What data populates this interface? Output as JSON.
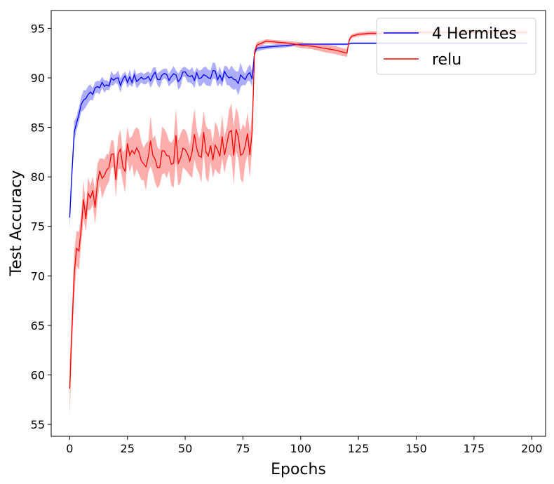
{
  "chart_data": {
    "type": "line",
    "xlabel": "Epochs",
    "ylabel": "Test Accuracy",
    "xlim": [
      -8,
      206
    ],
    "ylim": [
      53.8,
      96.8
    ],
    "xticks": [
      0,
      25,
      50,
      75,
      100,
      125,
      150,
      175,
      200
    ],
    "yticks": [
      55,
      60,
      65,
      70,
      75,
      80,
      85,
      90,
      95
    ],
    "legend_position": "top-right",
    "grid": false,
    "series": [
      {
        "name": "4 Hermites",
        "color": "#0000ff",
        "band_color": "#a0a0ff",
        "x": [
          0,
          2,
          4,
          6,
          8,
          10,
          12,
          15,
          18,
          20,
          22,
          25,
          28,
          30,
          32,
          35,
          38,
          40,
          42,
          45,
          48,
          50,
          52,
          55,
          58,
          60,
          62,
          65,
          68,
          70,
          72,
          75,
          77,
          79,
          80,
          81,
          85,
          90,
          95,
          100,
          105,
          110,
          115,
          120,
          122,
          125,
          130,
          135,
          140,
          150,
          160,
          170,
          180,
          190,
          198
        ],
        "values": [
          75.9,
          84.5,
          86.5,
          87.5,
          88.3,
          88.8,
          89.0,
          89.3,
          89.5,
          89.6,
          89.7,
          89.8,
          89.9,
          90.0,
          90.0,
          90.1,
          90.1,
          90.0,
          90.2,
          90.1,
          90.0,
          90.2,
          90.3,
          90.1,
          90.2,
          90.0,
          90.3,
          90.1,
          90.2,
          90.0,
          89.8,
          90.2,
          90.0,
          90.1,
          92.5,
          93.0,
          93.1,
          93.2,
          93.3,
          93.4,
          93.4,
          93.4,
          93.4,
          93.4,
          93.5,
          93.5,
          93.5,
          93.5,
          93.5,
          93.5,
          93.5,
          93.5,
          93.5,
          93.5,
          93.5
        ],
        "band": [
          1.2,
          1.0,
          0.9,
          0.8,
          0.7,
          0.7,
          0.7,
          0.6,
          0.6,
          0.6,
          0.6,
          0.6,
          0.6,
          0.6,
          0.6,
          0.6,
          0.7,
          0.6,
          0.6,
          0.6,
          0.7,
          0.6,
          0.7,
          0.7,
          0.7,
          0.8,
          0.8,
          0.8,
          0.8,
          1.0,
          1.1,
          0.9,
          0.8,
          0.8,
          0.4,
          0.3,
          0.2,
          0.2,
          0.2,
          0.1,
          0.1,
          0.1,
          0.1,
          0.1,
          0.1,
          0.1,
          0.1,
          0.1,
          0.1,
          0.1,
          0.1,
          0.1,
          0.1,
          0.1,
          0.1
        ],
        "wiggle": 0.5,
        "wiggle_until": 80
      },
      {
        "name": "relu",
        "color": "#ff0000",
        "band_color": "#ffa0a0",
        "x": [
          0,
          2,
          4,
          6,
          8,
          10,
          12,
          15,
          18,
          20,
          22,
          25,
          28,
          30,
          32,
          35,
          38,
          40,
          42,
          45,
          48,
          50,
          52,
          55,
          58,
          60,
          62,
          65,
          68,
          70,
          72,
          75,
          77,
          79,
          80,
          81,
          85,
          90,
          95,
          100,
          105,
          110,
          115,
          120,
          121,
          122,
          125,
          130,
          135,
          140,
          150,
          160,
          170,
          180,
          190,
          198
        ],
        "values": [
          58.6,
          71.0,
          74.0,
          76.5,
          77.0,
          77.8,
          78.8,
          80.0,
          80.8,
          81.2,
          81.5,
          81.8,
          82.0,
          82.2,
          82.3,
          82.4,
          82.5,
          82.5,
          82.6,
          82.7,
          82.8,
          82.8,
          82.9,
          83.0,
          83.0,
          83.1,
          83.1,
          83.2,
          83.2,
          83.3,
          83.3,
          83.4,
          83.4,
          83.5,
          92.5,
          93.3,
          93.7,
          93.6,
          93.5,
          93.3,
          93.2,
          93.0,
          92.8,
          92.5,
          93.8,
          94.2,
          94.4,
          94.5,
          94.5,
          94.6,
          94.6,
          94.6,
          94.6,
          94.6,
          94.6,
          94.6
        ],
        "band": [
          2.8,
          1.8,
          1.6,
          1.5,
          1.4,
          1.5,
          1.5,
          1.6,
          1.7,
          1.8,
          1.8,
          1.9,
          1.9,
          2.0,
          2.0,
          2.0,
          2.0,
          2.0,
          2.1,
          2.1,
          2.1,
          2.1,
          2.1,
          2.1,
          2.2,
          2.2,
          2.2,
          2.2,
          2.3,
          2.3,
          2.3,
          2.3,
          2.3,
          2.3,
          0.4,
          0.3,
          0.2,
          0.2,
          0.2,
          0.3,
          0.3,
          0.4,
          0.4,
          0.4,
          0.2,
          0.2,
          0.2,
          0.2,
          0.2,
          0.2,
          0.2,
          0.2,
          0.2,
          0.2,
          0.2,
          0.2
        ],
        "wiggle": 1.6,
        "wiggle_until": 80
      }
    ]
  }
}
